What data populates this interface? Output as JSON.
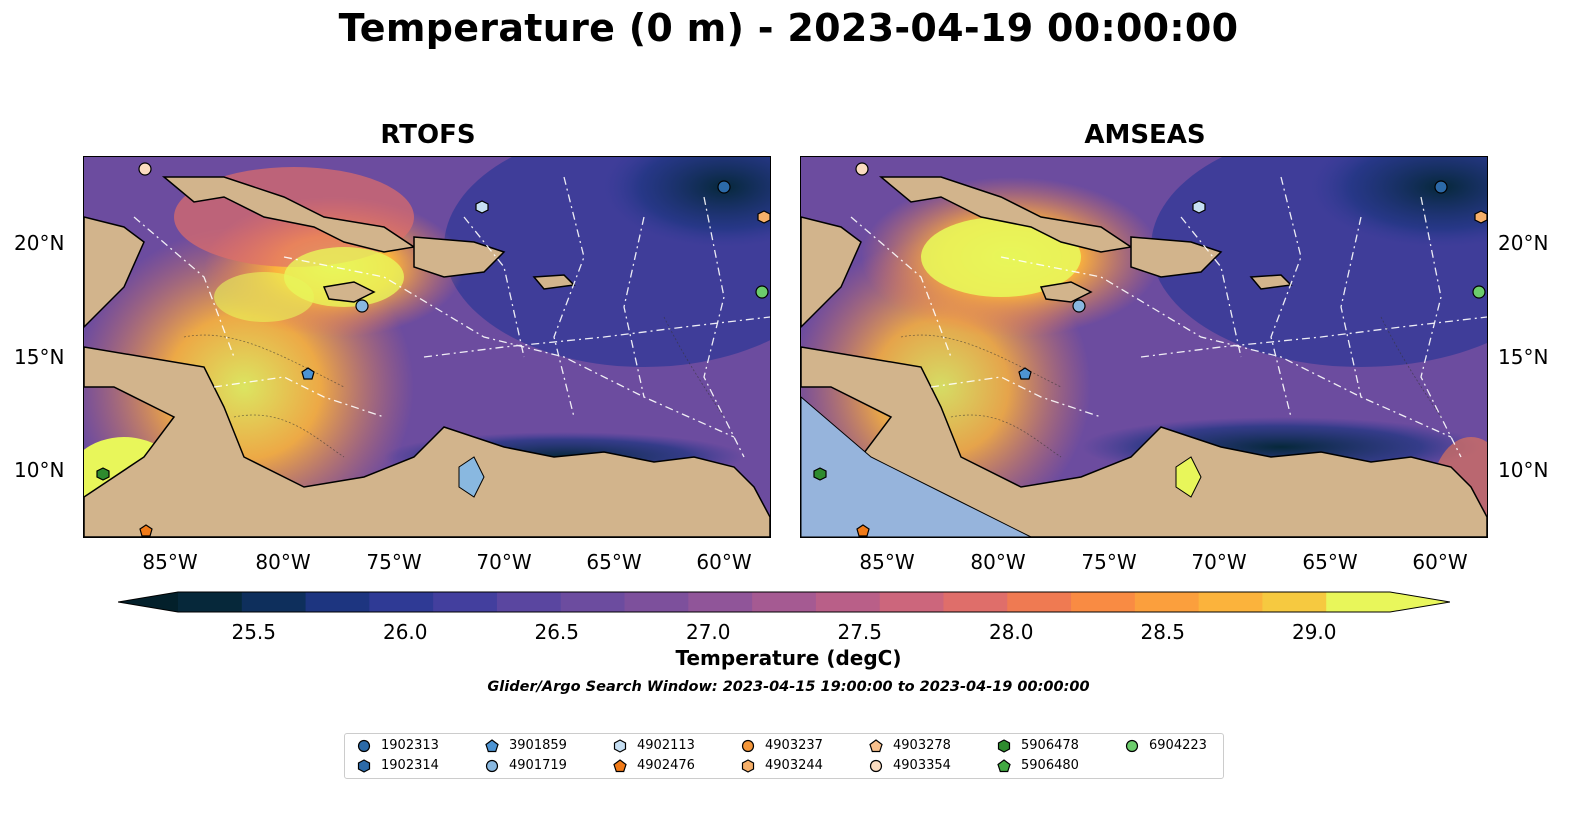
{
  "title": "Temperature (0 m) - 2023-04-19 00:00:00",
  "panels": [
    {
      "title": "RTOFS"
    },
    {
      "title": "AMSEAS"
    }
  ],
  "lon_ticks": [
    "85°W",
    "80°W",
    "75°W",
    "70°W",
    "65°W",
    "60°W"
  ],
  "lat_ticks": [
    "20°N",
    "15°N",
    "10°N"
  ],
  "colorbar": {
    "label": "Temperature (degC)",
    "ticks": [
      "25.5",
      "26.0",
      "26.5",
      "27.0",
      "27.5",
      "28.0",
      "28.5",
      "29.0"
    ],
    "colors": [
      "#06283a",
      "#0e2f5c",
      "#1d3580",
      "#2f3a95",
      "#433f9e",
      "#5a46a0",
      "#6c4c9f",
      "#7d509c",
      "#905599",
      "#a55a92",
      "#b95f88",
      "#cc667c",
      "#df6e6a",
      "#ef7a52",
      "#f98b43",
      "#fb9f3d",
      "#fbb33c",
      "#f6c940",
      "#e8f65a"
    ],
    "under_color": "#03202b",
    "over_color": "#e9f75c",
    "range": [
      25.25,
      29.25
    ]
  },
  "subtitle": "Glider/Argo Search Window: 2023-04-15 19:00:00 to 2023-04-19 00:00:00",
  "legend": [
    {
      "label": "1902313",
      "marker": "circle",
      "color": "#2c6aa8"
    },
    {
      "label": "1902314",
      "marker": "hexagon",
      "color": "#2c6aa8"
    },
    {
      "label": "3901859",
      "marker": "pentagon",
      "color": "#4d94d3"
    },
    {
      "label": "4901719",
      "marker": "circle",
      "color": "#89b8e0"
    },
    {
      "label": "4902113",
      "marker": "hexagon",
      "color": "#c6dff3"
    },
    {
      "label": "4902476",
      "marker": "pentagon",
      "color": "#f07a18"
    },
    {
      "label": "4903237",
      "marker": "circle",
      "color": "#f4973b"
    },
    {
      "label": "4903244",
      "marker": "hexagon",
      "color": "#f7b06a"
    },
    {
      "label": "4903278",
      "marker": "pentagon",
      "color": "#f8c08d"
    },
    {
      "label": "4903354",
      "marker": "circle",
      "color": "#fbdcc0"
    },
    {
      "label": "5906478",
      "marker": "hexagon",
      "color": "#2e8b2e"
    },
    {
      "label": "5906480",
      "marker": "pentagon",
      "color": "#42a842"
    },
    {
      "label": "6904223",
      "marker": "circle",
      "color": "#6ccd6c"
    }
  ]
}
